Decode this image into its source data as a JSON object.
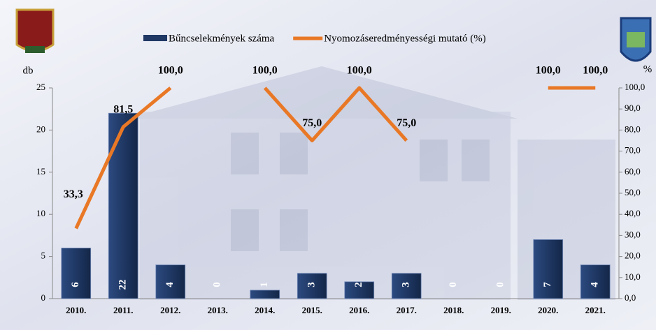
{
  "chart_data": {
    "type": "combo",
    "categories": [
      "2010.",
      "2011.",
      "2012.",
      "2013.",
      "2014.",
      "2015.",
      "2016.",
      "2017.",
      "2018.",
      "2019.",
      "2020.",
      "2021."
    ],
    "series": [
      {
        "name": "Bűncselekmények száma",
        "type": "bar",
        "color": "#1f3864",
        "values": [
          6,
          22,
          4,
          0,
          1,
          3,
          2,
          3,
          0,
          0,
          7,
          4
        ]
      },
      {
        "name": "Nyomozáseredményességi mutató (%)",
        "type": "line",
        "axis": "y2",
        "color": "#e97826",
        "values": [
          33.3,
          81.5,
          100,
          null,
          100,
          75,
          100,
          75,
          null,
          null,
          100,
          100
        ],
        "value_labels": [
          "33,3",
          "81,5",
          "100,0",
          null,
          "100,0",
          "75,0",
          "100,0",
          "75,0",
          null,
          null,
          "100,0",
          "100,0"
        ]
      }
    ],
    "y_label": "db",
    "y2_label": "%",
    "ylim": [
      0,
      25
    ],
    "yticks": [
      0,
      5,
      10,
      15,
      20,
      25
    ],
    "y2lim": [
      0,
      100
    ],
    "y2ticks": [
      {
        "value": 0,
        "label": "0,0"
      },
      {
        "value": 10,
        "label": "10,0"
      },
      {
        "value": 20,
        "label": "20,0"
      },
      {
        "value": 30,
        "label": "30,0"
      },
      {
        "value": 40,
        "label": "40,0"
      },
      {
        "value": 50,
        "label": "50,0"
      },
      {
        "value": 60,
        "label": "60,0"
      },
      {
        "value": 70,
        "label": "70,0"
      },
      {
        "value": 80,
        "label": "80,0"
      },
      {
        "value": 90,
        "label": "90,0"
      },
      {
        "value": 100,
        "label": "100,0"
      }
    ]
  }
}
